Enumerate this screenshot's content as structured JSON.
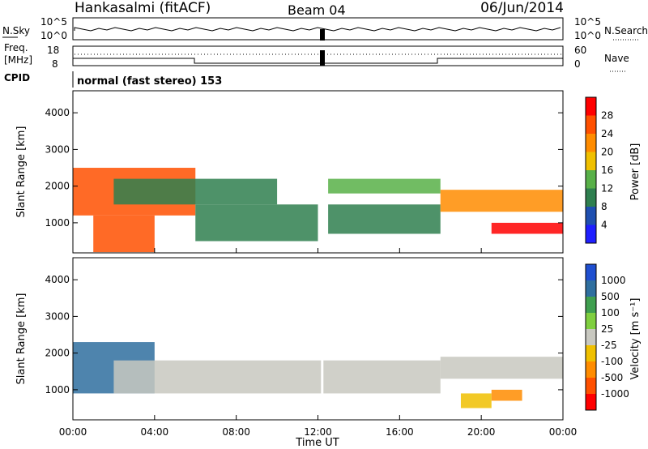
{
  "header": {
    "station": "Hankasalmi (fitACF)",
    "beam": "Beam 04",
    "date": "06/Jun/2014"
  },
  "panels": {
    "nsky": {
      "label": "N.Sky",
      "y_ticks": [
        "10^5",
        "10^0"
      ],
      "right_label": "N.Search",
      "right_ticks": [
        "10^5",
        "10^0"
      ]
    },
    "freq": {
      "label_top": "Freq.",
      "label_bottom": "[MHz]",
      "y_ticks": [
        "18",
        "8"
      ],
      "right_label": "Nave",
      "right_ticks": [
        "60",
        "0"
      ]
    },
    "cpid": {
      "label": "CPID",
      "text": "normal (fast stereo) 153"
    },
    "power": {
      "ylabel": "Slant Range [km]",
      "y_ticks": [
        "1000",
        "2000",
        "3000",
        "4000"
      ],
      "colorbar_label": "Power [dB]",
      "colorbar_ticks": [
        "4",
        "8",
        "12",
        "16",
        "20",
        "24",
        "28"
      ],
      "colors": [
        "#1f1fff",
        "#1f4fb0",
        "#2f7f4f",
        "#58b048",
        "#f0c000",
        "#ff8c00",
        "#ff5000",
        "#ff0000"
      ]
    },
    "velocity": {
      "ylabel": "Slant Range [km]",
      "y_ticks": [
        "1000",
        "2000",
        "3000",
        "4000"
      ],
      "colorbar_label": "Velocity [m s⁻¹]",
      "colorbar_ticks": [
        "1000",
        "500",
        "100",
        "25",
        "-25",
        "-100",
        "-500",
        "-1000"
      ],
      "colors": [
        "#1f4fd0",
        "#2f6f9f",
        "#3f9f4f",
        "#7fcf3f",
        "#c8c8c0",
        "#f0c000",
        "#ff8c00",
        "#ff5000",
        "#ff0000"
      ]
    }
  },
  "xaxis": {
    "label": "Time UT",
    "ticks": [
      "00:00",
      "04:00",
      "08:00",
      "12:00",
      "16:00",
      "20:00",
      "00:00"
    ]
  },
  "chart_data": {
    "type": "heatmap",
    "title": "Hankasalmi (fitACF) Beam 04 06/Jun/2014",
    "xlabel": "Time UT",
    "ylabel": "Slant Range [km]",
    "xlim_hours": [
      0,
      24
    ],
    "ylim_km": [
      180,
      4600
    ],
    "grid": false,
    "power_levels_dB": [
      4,
      8,
      12,
      16,
      20,
      24,
      28
    ],
    "velocity_levels_ms": [
      1000,
      500,
      100,
      25,
      -25,
      -100,
      -500,
      -1000
    ],
    "power_regions": [
      {
        "t0": 0.0,
        "t1": 6.0,
        "r0": 1200,
        "r1": 2500,
        "level": 6
      },
      {
        "t0": 1.0,
        "t1": 4.0,
        "r0": 200,
        "r1": 1200,
        "level": 6
      },
      {
        "t0": 2.0,
        "t1": 10.0,
        "r0": 1500,
        "r1": 2200,
        "level": 2
      },
      {
        "t0": 6.0,
        "t1": 12.0,
        "r0": 500,
        "r1": 1500,
        "level": 2
      },
      {
        "t0": 12.5,
        "t1": 18.0,
        "r0": 1800,
        "r1": 2200,
        "level": 3
      },
      {
        "t0": 12.5,
        "t1": 18.0,
        "r0": 700,
        "r1": 1500,
        "level": 2
      },
      {
        "t0": 18.0,
        "t1": 24.0,
        "r0": 1300,
        "r1": 1900,
        "level": 5
      },
      {
        "t0": 20.5,
        "t1": 24.0,
        "r0": 700,
        "r1": 1000,
        "level": 7
      }
    ],
    "velocity_regions": [
      {
        "t0": 0.0,
        "t1": 4.0,
        "r0": 900,
        "r1": 2300,
        "level": 1
      },
      {
        "t0": 2.0,
        "t1": 18.0,
        "r0": 900,
        "r1": 1800,
        "level": 4
      },
      {
        "t0": 18.0,
        "t1": 24.0,
        "r0": 1300,
        "r1": 1900,
        "level": 4
      },
      {
        "t0": 19.0,
        "t1": 20.5,
        "r0": 500,
        "r1": 900,
        "level": 5
      },
      {
        "t0": 20.5,
        "t1": 22.0,
        "r0": 700,
        "r1": 1000,
        "level": 6
      }
    ]
  }
}
